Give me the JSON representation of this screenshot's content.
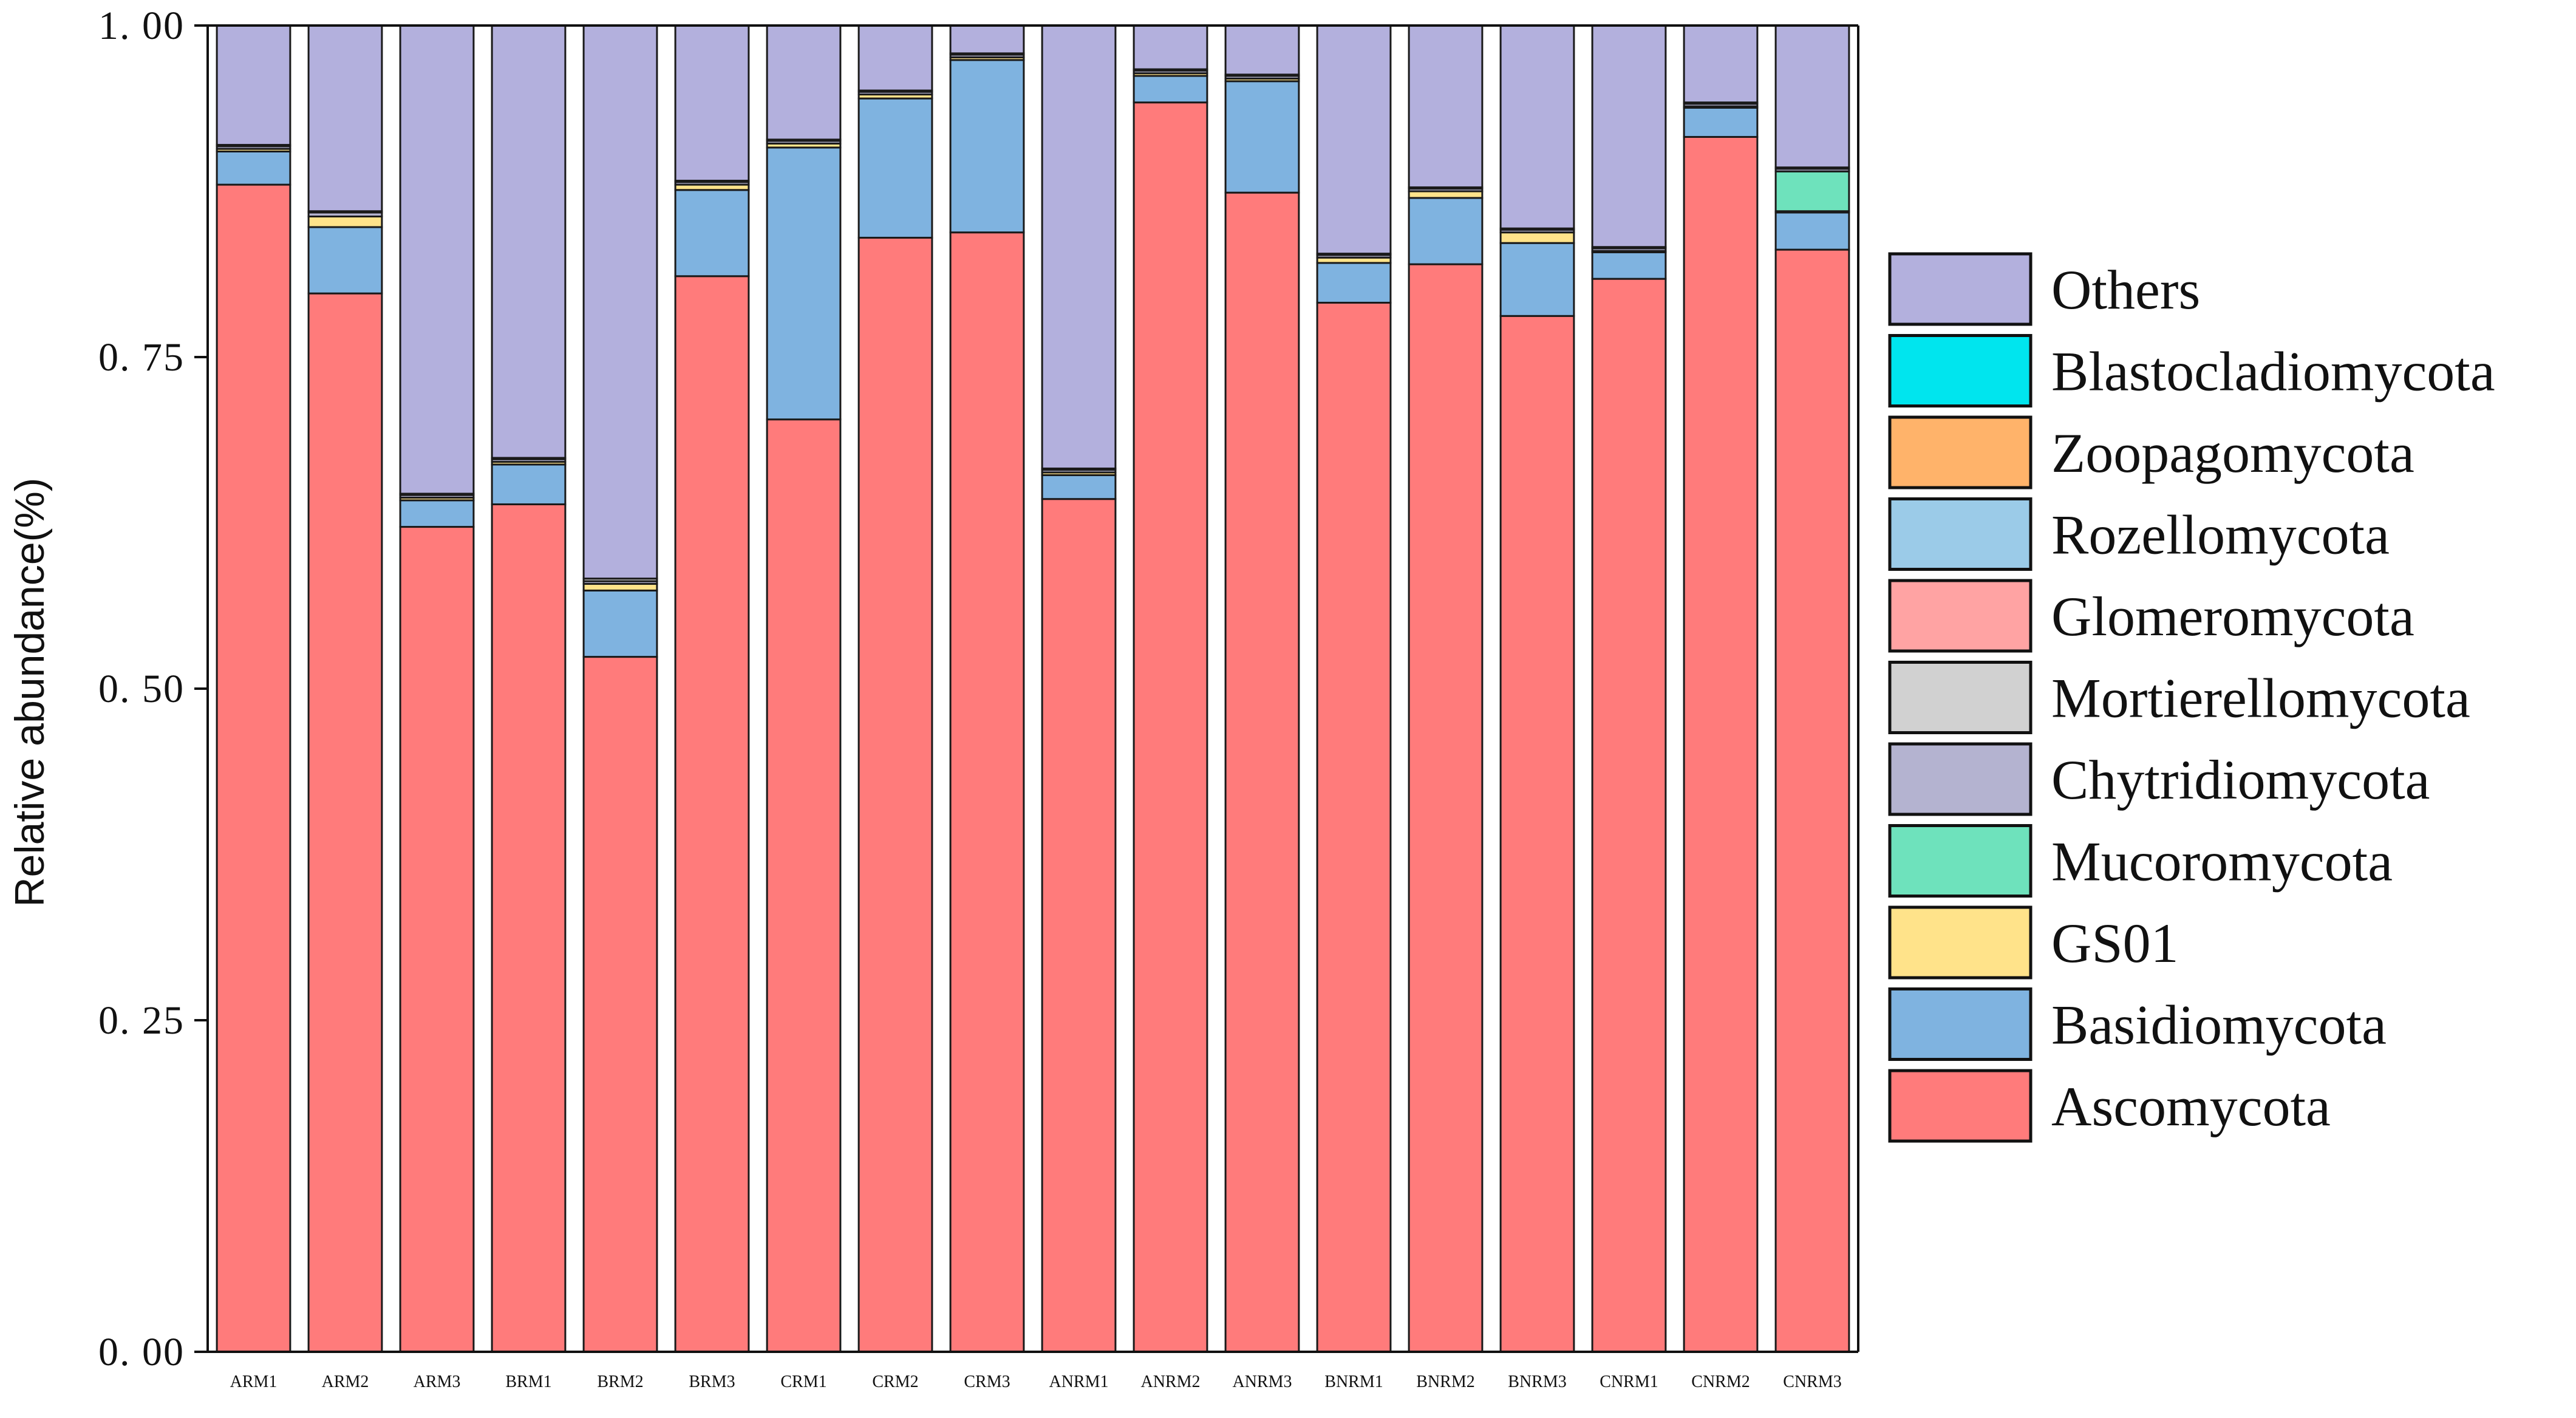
{
  "chart_data": {
    "type": "bar",
    "stacked": true,
    "title": "",
    "xlabel": "",
    "ylabel": "Relative abundance(%)",
    "ylim": [
      0,
      1
    ],
    "yticks": [
      0,
      0.25,
      0.5,
      0.75,
      1.0
    ],
    "ytick_labels": [
      "0. 00",
      "0. 25",
      "0. 50",
      "0. 75",
      "1. 00"
    ],
    "grid": false,
    "legend_position": "right",
    "categories": [
      "ARM1",
      "ARM2",
      "ARM3",
      "BRM1",
      "BRM2",
      "BRM3",
      "CRM1",
      "CRM2",
      "CRM3",
      "ANRM1",
      "ANRM2",
      "ANRM3",
      "BNRM1",
      "BNRM2",
      "BNRM3",
      "CNRM1",
      "CNRM2",
      "CNRM3"
    ],
    "series": [
      {
        "name": "Ascomycota",
        "color": "#ff7b7b",
        "values": [
          0.88,
          0.798,
          0.622,
          0.639,
          0.524,
          0.811,
          0.703,
          0.84,
          0.844,
          0.643,
          0.942,
          0.874,
          0.791,
          0.82,
          0.781,
          0.809,
          0.916,
          0.831
        ]
      },
      {
        "name": "Basidiomycota",
        "color": "#7fb3e0",
        "values": [
          0.025,
          0.05,
          0.02,
          0.03,
          0.05,
          0.065,
          0.205,
          0.105,
          0.13,
          0.018,
          0.02,
          0.084,
          0.03,
          0.05,
          0.055,
          0.02,
          0.022,
          0.028
        ]
      },
      {
        "name": "GS01",
        "color": "#ffe38a",
        "values": [
          0.002,
          0.008,
          0.002,
          0.002,
          0.005,
          0.004,
          0.003,
          0.003,
          0.002,
          0.002,
          0.002,
          0.002,
          0.004,
          0.005,
          0.008,
          0.001,
          0.001,
          0.001
        ]
      },
      {
        "name": "Mucoromycota",
        "color": "#6ee2bc",
        "values": [
          0,
          0,
          0,
          0,
          0,
          0,
          0,
          0,
          0,
          0,
          0,
          0,
          0,
          0,
          0,
          0,
          0,
          0.03
        ]
      },
      {
        "name": "Chytridiomycota",
        "color": "#b4b3d0",
        "values": [
          0.002,
          0.003,
          0.002,
          0.002,
          0.002,
          0.002,
          0.002,
          0.002,
          0.002,
          0.002,
          0.002,
          0.002,
          0.002,
          0.002,
          0.002,
          0.002,
          0.002,
          0.002
        ]
      },
      {
        "name": "Mortierellomycota",
        "color": "#d1d1d1",
        "values": [
          0.001,
          0.001,
          0.001,
          0.001,
          0.002,
          0.001,
          0.001,
          0.001,
          0.001,
          0.001,
          0.001,
          0.001,
          0.001,
          0.001,
          0.001,
          0.001,
          0.001,
          0.001
        ]
      },
      {
        "name": "Glomeromycota",
        "color": "#ffa3a3",
        "values": [
          0,
          0,
          0,
          0,
          0,
          0,
          0,
          0,
          0,
          0,
          0,
          0,
          0,
          0,
          0,
          0,
          0,
          0
        ]
      },
      {
        "name": "Rozellomycota",
        "color": "#9bcbe8",
        "values": [
          0,
          0,
          0,
          0,
          0,
          0,
          0,
          0,
          0,
          0,
          0,
          0,
          0,
          0,
          0,
          0,
          0,
          0
        ]
      },
      {
        "name": "Zoopagomycota",
        "color": "#ffb36a",
        "values": [
          0,
          0,
          0,
          0,
          0,
          0,
          0,
          0,
          0,
          0,
          0,
          0,
          0,
          0,
          0,
          0,
          0,
          0
        ]
      },
      {
        "name": "Blastocladiomycota",
        "color": "#00e5ee",
        "values": [
          0,
          0,
          0,
          0,
          0,
          0,
          0,
          0,
          0,
          0,
          0,
          0,
          0,
          0,
          0,
          0,
          0,
          0
        ]
      },
      {
        "name": "Others",
        "color": "#b3b0dd",
        "values": [
          0.09,
          0.14,
          0.353,
          0.326,
          0.417,
          0.117,
          0.086,
          0.049,
          0.021,
          0.334,
          0.033,
          0.037,
          0.172,
          0.122,
          0.153,
          0.167,
          0.058,
          0.107
        ]
      }
    ],
    "legend_order": [
      "Others",
      "Blastocladiomycota",
      "Zoopagomycota",
      "Rozellomycota",
      "Glomeromycota",
      "Mortierellomycota",
      "Chytridiomycota",
      "Mucoromycota",
      "GS01",
      "Basidiomycota",
      "Ascomycota"
    ]
  }
}
